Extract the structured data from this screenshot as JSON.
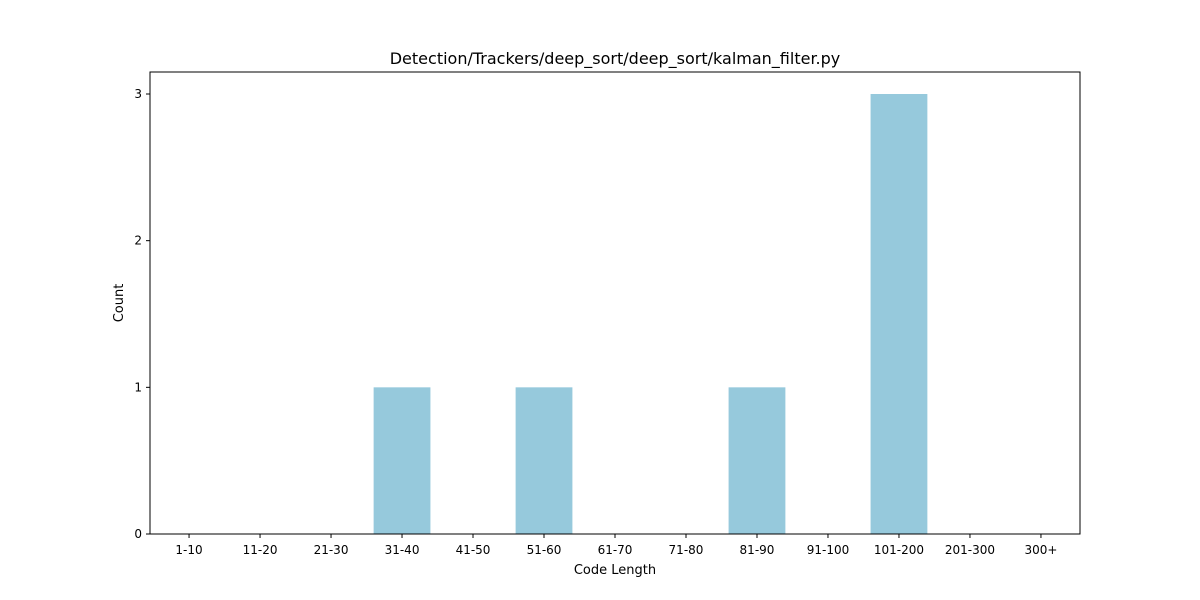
{
  "chart_data": {
    "type": "bar",
    "title": "Detection/Trackers/deep_sort/deep_sort/kalman_filter.py",
    "xlabel": "Code Length",
    "ylabel": "Count",
    "categories": [
      "1-10",
      "11-20",
      "21-30",
      "31-40",
      "41-50",
      "51-60",
      "61-70",
      "71-80",
      "81-90",
      "91-100",
      "101-200",
      "201-300",
      "300+"
    ],
    "values": [
      0,
      0,
      0,
      1,
      0,
      1,
      0,
      0,
      1,
      0,
      3,
      0,
      0
    ],
    "yticks": [
      0,
      1,
      2,
      3
    ],
    "ylim": [
      0,
      3.15
    ],
    "grid": false,
    "bar_color": "#96c9dc"
  }
}
